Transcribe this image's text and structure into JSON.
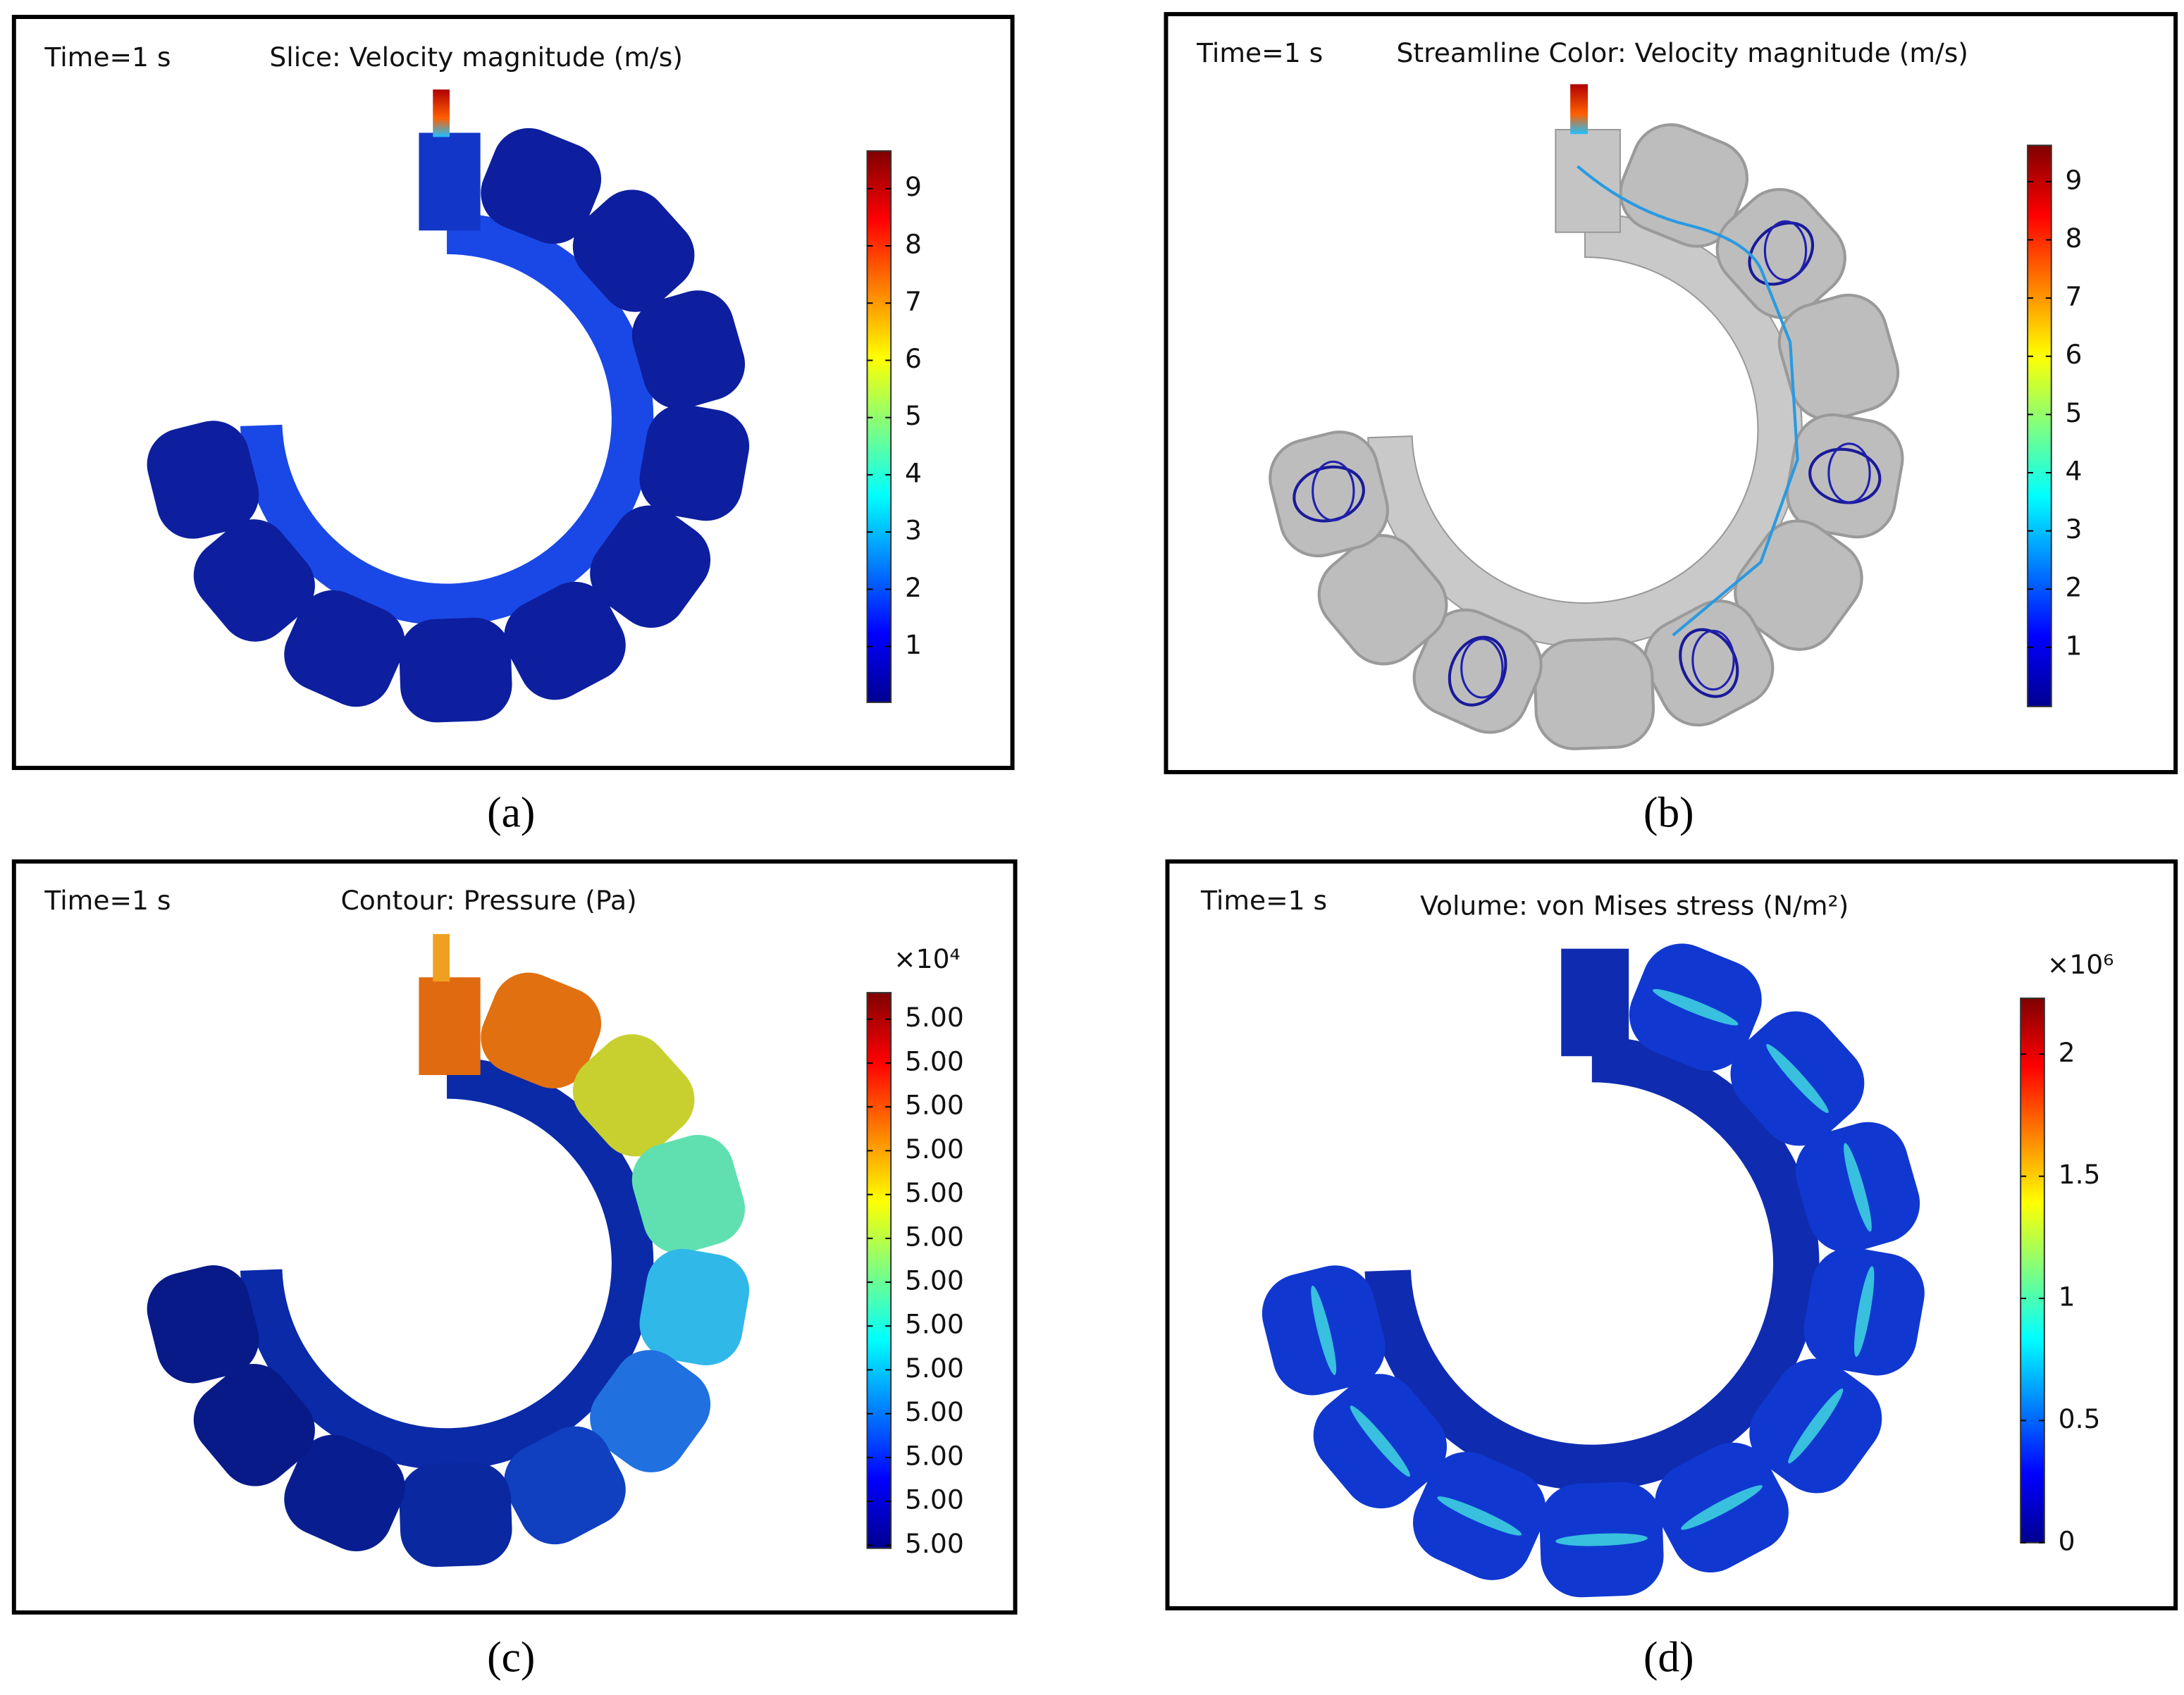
{
  "panels": [
    {
      "time": "Time=1 s",
      "title": "Slice: Velocity magnitude (m/s)",
      "colorbar": {
        "ticks": [
          "9",
          "8",
          "7",
          "6",
          "5",
          "4",
          "3",
          "2",
          "1"
        ]
      },
      "caption": "(a)"
    },
    {
      "time": "Time=1 s",
      "title": "Streamline Color: Velocity magnitude (m/s)",
      "colorbar": {
        "ticks": [
          "9",
          "8",
          "7",
          "6",
          "5",
          "4",
          "3",
          "2",
          "1"
        ]
      },
      "caption": "(b)"
    },
    {
      "time": "Time=1 s",
      "title": "Contour: Pressure (Pa)",
      "colorbar": {
        "multiplier": "×10⁴",
        "ticks": [
          "5.00",
          "5.00",
          "5.00",
          "5.00",
          "5.00",
          "5.00",
          "5.00",
          "5.00",
          "5.00",
          "5.00",
          "5.00",
          "5.00",
          "5.00"
        ]
      },
      "caption": "(c)"
    },
    {
      "time": "Time=1 s",
      "title": "Volume: von Mises stress (N/m²)",
      "colorbar": {
        "multiplier": "×10⁶",
        "ticks": [
          "2",
          "1.5",
          "1",
          "0.5",
          "0"
        ]
      },
      "caption": "(d)"
    }
  ]
}
